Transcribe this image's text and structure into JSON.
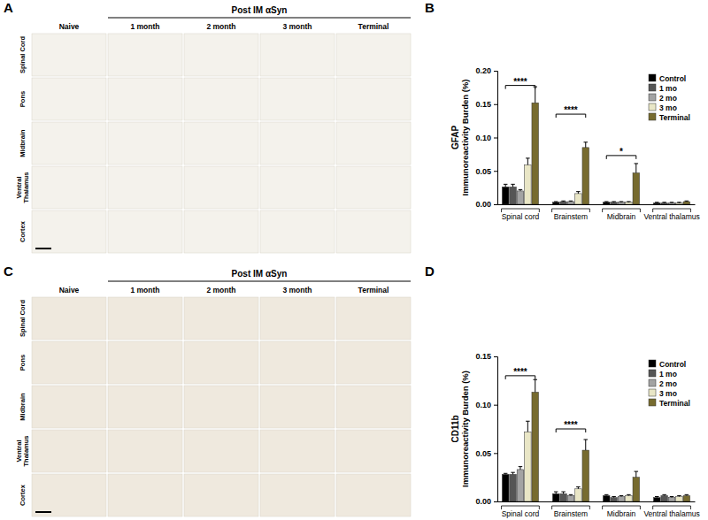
{
  "chart_data": [
    {
      "type": "bar",
      "panel_label": "B",
      "ylabel": "GFAP Immunoreactivity Burden (%)",
      "categories": [
        "Spinal cord",
        "Brainstem",
        "Midbrain",
        "Ventral thalamus"
      ],
      "series": [
        {
          "name": "Control",
          "color": "#000000",
          "values": [
            0.026,
            0.003,
            0.003,
            0.002
          ],
          "errors": [
            0.004,
            0.001,
            0.001,
            0.001
          ]
        },
        {
          "name": "1 mo",
          "color": "#555555",
          "values": [
            0.026,
            0.004,
            0.003,
            0.002
          ],
          "errors": [
            0.004,
            0.001,
            0.001,
            0.001
          ]
        },
        {
          "name": "2 mo",
          "color": "#a3a3a3",
          "values": [
            0.02,
            0.004,
            0.003,
            0.002
          ],
          "errors": [
            0.002,
            0.001,
            0.001,
            0.001
          ]
        },
        {
          "name": "3 mo",
          "color": "#e9e6c6",
          "values": [
            0.059,
            0.016,
            0.003,
            0.002
          ],
          "errors": [
            0.01,
            0.003,
            0.001,
            0.001
          ]
        },
        {
          "name": "Terminal",
          "color": "#776b2f",
          "values": [
            0.152,
            0.085,
            0.047,
            0.004
          ],
          "errors": [
            0.024,
            0.008,
            0.014,
            0.001
          ]
        }
      ],
      "ylim": [
        0,
        0.2
      ],
      "yticks": [
        {
          "value": 0,
          "label": "0.00"
        },
        {
          "value": 0.05,
          "label": "0.05"
        },
        {
          "value": 0.1,
          "label": "0.10"
        },
        {
          "value": 0.15,
          "label": "0.15"
        },
        {
          "value": 0.2,
          "label": "0.20"
        }
      ],
      "legend": "upper right",
      "annotations": [
        {
          "text": "****",
          "category": "Spinal cord",
          "from": "Control",
          "to": "Terminal",
          "y": 0.178
        },
        {
          "text": "****",
          "category": "Brainstem",
          "from": "Control",
          "to": "Terminal",
          "y": 0.135
        },
        {
          "text": "*",
          "category": "Midbrain",
          "from": "Control",
          "to": "Terminal",
          "y": 0.073
        }
      ]
    },
    {
      "type": "bar",
      "panel_label": "D",
      "ylabel": "CD11b Immunoreactivity Burden (%)",
      "categories": [
        "Spinal cord",
        "Brainstem",
        "Midbrain",
        "Ventral thalamus"
      ],
      "series": [
        {
          "name": "Control",
          "color": "#000000",
          "values": [
            0.028,
            0.008,
            0.006,
            0.004
          ],
          "errors": [
            0.001,
            0.002,
            0.001,
            0.001
          ]
        },
        {
          "name": "1 mo",
          "color": "#555555",
          "values": [
            0.028,
            0.008,
            0.004,
            0.006
          ],
          "errors": [
            0.002,
            0.002,
            0.001,
            0.001
          ]
        },
        {
          "name": "2 mo",
          "color": "#a3a3a3",
          "values": [
            0.033,
            0.006,
            0.005,
            0.004
          ],
          "errors": [
            0.003,
            0.001,
            0.001,
            0.001
          ]
        },
        {
          "name": "3 mo",
          "color": "#e9e6c6",
          "values": [
            0.072,
            0.013,
            0.006,
            0.005
          ],
          "errors": [
            0.011,
            0.002,
            0.001,
            0.001
          ]
        },
        {
          "name": "Terminal",
          "color": "#776b2f",
          "values": [
            0.113,
            0.053,
            0.025,
            0.006
          ],
          "errors": [
            0.013,
            0.011,
            0.006,
            0.001
          ]
        }
      ],
      "ylim": [
        0,
        0.15
      ],
      "yticks": [
        {
          "value": 0,
          "label": "0.00"
        },
        {
          "value": 0.05,
          "label": "0.05"
        },
        {
          "value": 0.1,
          "label": "0.10"
        },
        {
          "value": 0.15,
          "label": "0.15"
        }
      ],
      "legend": "upper right",
      "annotations": [
        {
          "text": "****",
          "category": "Spinal cord",
          "from": "Control",
          "to": "Terminal",
          "y": 0.13
        },
        {
          "text": "****",
          "category": "Brainstem",
          "from": "Control",
          "to": "Terminal",
          "y": 0.075
        }
      ]
    }
  ],
  "image_panels": [
    {
      "panel_label": "A",
      "header": "Post IM αSyn",
      "columns": [
        "Naive",
        "1 month",
        "2 month",
        "3 month",
        "Terminal"
      ],
      "rows": [
        "Spinal Cord",
        "Pons",
        "Midbrain",
        "Ventral Thalamus",
        "Cortex"
      ]
    },
    {
      "panel_label": "C",
      "header": "Post IM αSyn",
      "columns": [
        "Naive",
        "1 month",
        "2 month",
        "3 month",
        "Terminal"
      ],
      "rows": [
        "Spinal Cord",
        "Pons",
        "Midbrain",
        "Ventral Thalamus",
        "Cortex"
      ]
    }
  ]
}
